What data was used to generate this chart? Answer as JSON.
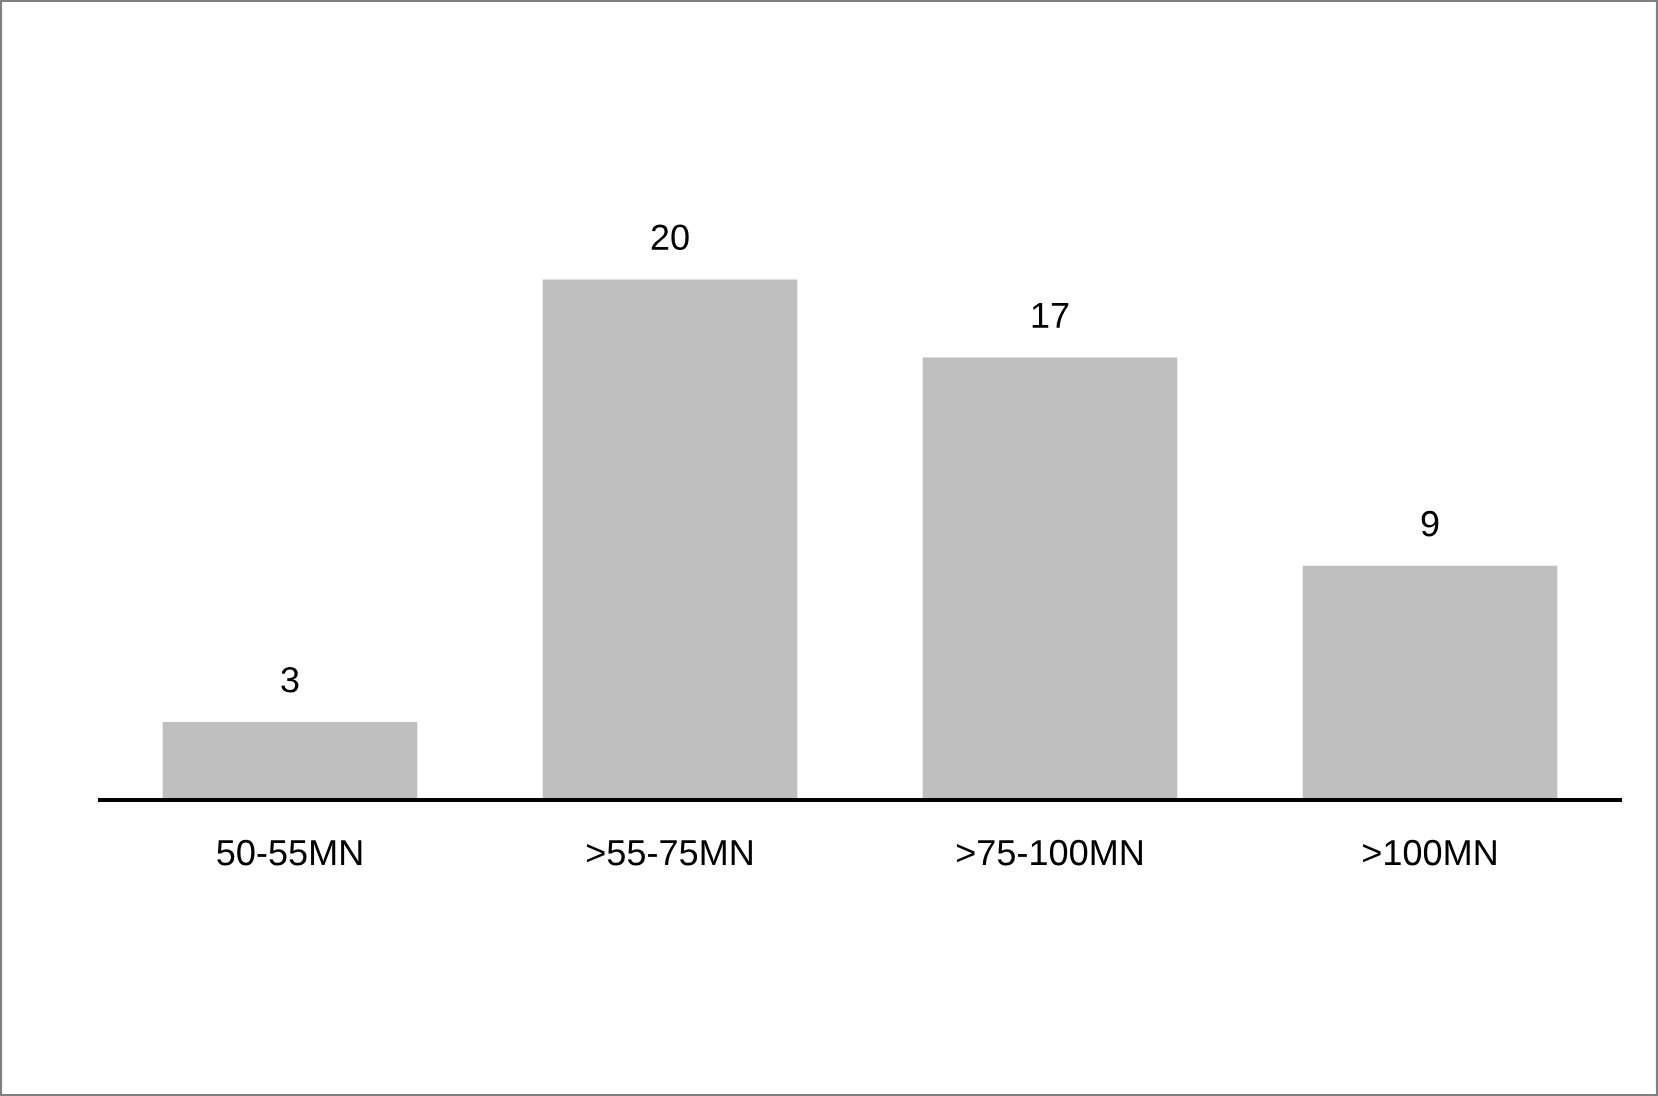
{
  "chart_data": {
    "type": "bar",
    "categories": [
      "50-55MN",
      ">55-75MN",
      ">75-100MN",
      ">100MN"
    ],
    "values": [
      3,
      20,
      17,
      9
    ],
    "color": "#bfbfbf",
    "data_labels": true,
    "grid": false,
    "legend": false
  }
}
